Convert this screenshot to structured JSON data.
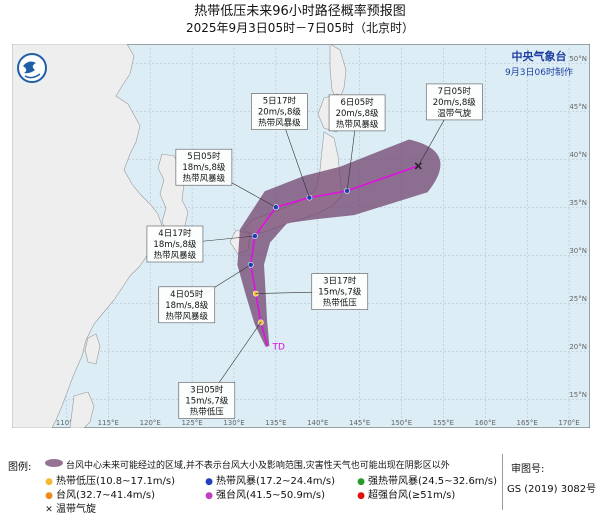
{
  "title_line1": "热带低压未来96小时路径概率预报图",
  "title_line2": "2025年9月3日05时－7日05时（北京时）",
  "issuer": {
    "name": "中央气象台",
    "time": "9月3日06时制作"
  },
  "lon_ticks": [
    "105°E",
    "110°E",
    "115°E",
    "120°E",
    "125°E",
    "130°E",
    "135°E",
    "140°E",
    "145°E",
    "150°E",
    "155°E",
    "160°E",
    "165°E",
    "170°E"
  ],
  "lat_ticks": [
    "15°N",
    "20°N",
    "25°N",
    "30°N",
    "35°N",
    "40°N",
    "45°N",
    "50°N"
  ],
  "track": [
    {
      "lon": 134.0,
      "lat": 20.5
    },
    {
      "lon": 133.2,
      "lat": 23.0
    },
    {
      "lon": 132.6,
      "lat": 26.0
    },
    {
      "lon": 132.0,
      "lat": 29.0
    },
    {
      "lon": 132.5,
      "lat": 32.0
    },
    {
      "lon": 135.0,
      "lat": 35.0
    },
    {
      "lon": 139.0,
      "lat": 36.0
    },
    {
      "lon": 143.5,
      "lat": 36.7
    },
    {
      "lon": 152.0,
      "lat": 39.3
    }
  ],
  "points": [
    {
      "lon": 133.2,
      "lat": 23.0,
      "cat": "td",
      "label": [
        "3日05时",
        "15m/s,7级",
        "热带低压"
      ]
    },
    {
      "lon": 132.6,
      "lat": 26.0,
      "cat": "td",
      "label": [
        "3日17时",
        "15m/s,7级",
        "热带低压"
      ]
    },
    {
      "lon": 132.0,
      "lat": 29.0,
      "cat": "ts",
      "label": [
        "4日05时",
        "18m/s,8级",
        "热带风暴级"
      ]
    },
    {
      "lon": 132.5,
      "lat": 32.0,
      "cat": "ts",
      "label": [
        "4日17时",
        "18m/s,8级",
        "热带风暴级"
      ]
    },
    {
      "lon": 135.0,
      "lat": 35.0,
      "cat": "ts",
      "label": [
        "5日05时",
        "18m/s,8级",
        "热带风暴级"
      ]
    },
    {
      "lon": 139.0,
      "lat": 36.0,
      "cat": "ts",
      "label": [
        "5日17时",
        "20m/s,8级",
        "热带风暴级"
      ]
    },
    {
      "lon": 143.5,
      "lat": 36.7,
      "cat": "ts",
      "label": [
        "6日05时",
        "20m/s,8级",
        "热带风暴级"
      ]
    },
    {
      "lon": 152.0,
      "lat": 39.3,
      "cat": "ex",
      "label": [
        "7日05时",
        "20m/s,8级",
        "温带气旋"
      ]
    }
  ],
  "td_tag": "TD",
  "legend": {
    "heading": "图例:",
    "cone_text": "台风中心未来可能经过的区域,并不表示台风大小及影响范围,灾害性天气也可能出现在阴影区以外",
    "items": [
      {
        "text": "热带低压(10.8~17.1m/s)",
        "color": "#f5b830"
      },
      {
        "text": "热带风暴(17.2~24.4m/s)",
        "color": "#1f3fbf"
      },
      {
        "text": "强热带风暴(24.5~32.6m/s)",
        "color": "#2a9a2a"
      },
      {
        "text": "台风(32.7~41.4m/s)",
        "color": "#f08a1a"
      },
      {
        "text": "强台风(41.5~50.9m/s)",
        "color": "#c040c0"
      },
      {
        "text": "超强台风(≥51m/s)",
        "color": "#e01010"
      },
      {
        "text": "温带气旋",
        "color": "#222222"
      }
    ],
    "review_label": "审图号:",
    "review_no": "GS (2019) 3082号"
  },
  "colors": {
    "sea": "#dcedf6",
    "land": "#eeeeee",
    "cone": "#6e3d6a",
    "track": "#e010e0"
  }
}
